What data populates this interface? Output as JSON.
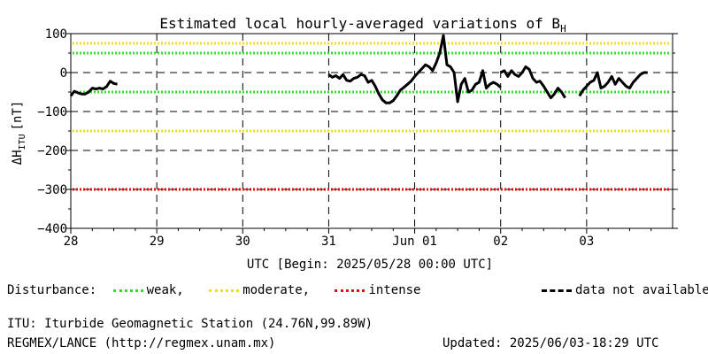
{
  "chart_data": {
    "type": "line",
    "title": "Estimated local hourly-averaged variations of B",
    "title_sub": "H",
    "ylabel_main": "ΔH",
    "ylabel_sub": "ITU",
    "ylabel_unit": "[nT]",
    "xlabel": "UTC [Begin: 2025/05/28 00:00 UTC]",
    "ylim": [
      -400,
      100
    ],
    "xlim_hours": [
      0,
      168
    ],
    "yticks": [
      {
        "value": 100,
        "label": "100"
      },
      {
        "value": 0,
        "label": "0"
      },
      {
        "value": -100,
        "label": "−100"
      },
      {
        "value": -200,
        "label": "−200"
      },
      {
        "value": -300,
        "label": "−300"
      },
      {
        "value": -400,
        "label": "−400"
      }
    ],
    "xticks": [
      {
        "hour": 0,
        "label": "28"
      },
      {
        "hour": 24,
        "label": "29"
      },
      {
        "hour": 48,
        "label": "30"
      },
      {
        "hour": 72,
        "label": "31"
      },
      {
        "hour": 96,
        "label": "Jun 01"
      },
      {
        "hour": 120,
        "label": "02"
      },
      {
        "hour": 144,
        "label": "03"
      }
    ],
    "thresholds": [
      {
        "name": "weak",
        "values": [
          50,
          -50
        ],
        "color": "#33dd33"
      },
      {
        "name": "moderate",
        "values": [
          75,
          -150
        ],
        "color": "#eedd22"
      },
      {
        "name": "intense",
        "values": [
          -300
        ],
        "color": "#dd1111"
      }
    ],
    "series": [
      {
        "segments": [
          [
            [
              0,
              -60
            ],
            [
              1,
              -48
            ],
            [
              2,
              -52
            ],
            [
              3,
              -55
            ],
            [
              4,
              -55
            ],
            [
              5,
              -50
            ],
            [
              6,
              -40
            ],
            [
              7,
              -42
            ],
            [
              8,
              -40
            ],
            [
              9,
              -42
            ],
            [
              10,
              -36
            ],
            [
              11,
              -22
            ],
            [
              12,
              -28
            ],
            [
              13,
              -30
            ]
          ],
          [
            [
              72,
              -5
            ],
            [
              73,
              -12
            ],
            [
              74,
              -8
            ],
            [
              75,
              -15
            ],
            [
              76,
              -5
            ],
            [
              77,
              -20
            ],
            [
              78,
              -22
            ],
            [
              79,
              -15
            ],
            [
              80,
              -12
            ],
            [
              81,
              -5
            ],
            [
              82,
              -8
            ],
            [
              83,
              -25
            ],
            [
              84,
              -20
            ],
            [
              85,
              -35
            ],
            [
              86,
              -55
            ],
            [
              87,
              -70
            ],
            [
              88,
              -78
            ],
            [
              89,
              -78
            ],
            [
              90,
              -72
            ],
            [
              91,
              -60
            ],
            [
              92,
              -45
            ],
            [
              93,
              -38
            ],
            [
              94,
              -30
            ],
            [
              95,
              -22
            ],
            [
              96,
              -10
            ],
            [
              97,
              0
            ],
            [
              98,
              10
            ],
            [
              99,
              20
            ],
            [
              100,
              15
            ],
            [
              101,
              5
            ],
            [
              102,
              25
            ],
            [
              103,
              50
            ],
            [
              104,
              95
            ],
            [
              105,
              20
            ],
            [
              106,
              15
            ],
            [
              107,
              0
            ],
            [
              108,
              -75
            ],
            [
              109,
              -30
            ],
            [
              110,
              -15
            ],
            [
              111,
              -50
            ],
            [
              112,
              -45
            ],
            [
              113,
              -30
            ],
            [
              114,
              -25
            ],
            [
              115,
              5
            ],
            [
              116,
              -40
            ],
            [
              117,
              -30
            ],
            [
              118,
              -25
            ],
            [
              119,
              -30
            ],
            [
              120,
              -38
            ]
          ],
          [
            [
              120,
              0
            ],
            [
              121,
              5
            ],
            [
              122,
              -10
            ],
            [
              123,
              5
            ],
            [
              124,
              -5
            ],
            [
              125,
              -10
            ],
            [
              126,
              0
            ],
            [
              127,
              15
            ],
            [
              128,
              8
            ],
            [
              129,
              -15
            ],
            [
              130,
              -25
            ],
            [
              131,
              -22
            ],
            [
              132,
              -35
            ],
            [
              133,
              -50
            ],
            [
              134,
              -65
            ],
            [
              135,
              -55
            ],
            [
              136,
              -40
            ],
            [
              137,
              -50
            ],
            [
              138,
              -65
            ]
          ],
          [
            [
              142,
              -60
            ],
            [
              143,
              -45
            ],
            [
              144,
              -35
            ],
            [
              145,
              -25
            ],
            [
              146,
              -20
            ],
            [
              147,
              0
            ],
            [
              148,
              -40
            ],
            [
              149,
              -35
            ],
            [
              150,
              -25
            ],
            [
              151,
              -10
            ],
            [
              152,
              -30
            ],
            [
              153,
              -15
            ],
            [
              154,
              -25
            ],
            [
              155,
              -35
            ],
            [
              156,
              -40
            ],
            [
              157,
              -25
            ],
            [
              158,
              -15
            ],
            [
              159,
              -5
            ],
            [
              160,
              0
            ],
            [
              161,
              0
            ]
          ]
        ]
      }
    ]
  },
  "legend": {
    "label": "Disturbance:",
    "weak": "weak,",
    "moderate": "moderate,",
    "intense": "intense",
    "na": "data not available."
  },
  "footer": {
    "station": "ITU: Iturbide Geomagnetic Station (24.76N,99.89W)",
    "source": "REGMEX/LANCE (http://regmex.unam.mx)",
    "updated": "Updated: 2025/06/03-18:29 UTC"
  }
}
